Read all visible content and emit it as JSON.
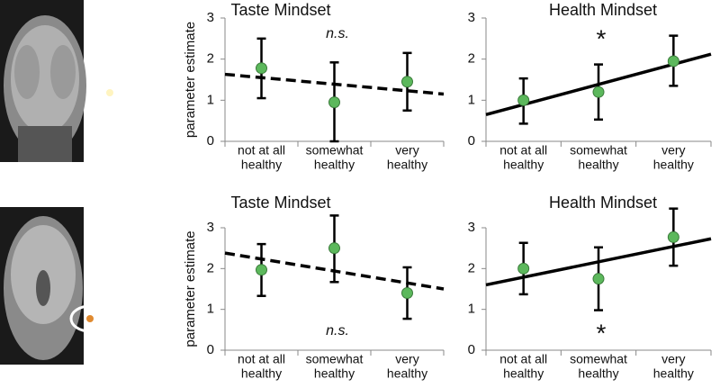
{
  "chart_data": [
    {
      "type": "errorbar",
      "title": "Taste Mindset",
      "y_label": "parameter estimate",
      "categories": [
        [
          "not at all",
          "healthy"
        ],
        [
          "somewhat",
          "healthy"
        ],
        [
          "very",
          "healthy"
        ]
      ],
      "values": [
        1.78,
        0.95,
        1.45
      ],
      "lower": [
        1.05,
        0,
        0.75
      ],
      "upper": [
        2.5,
        1.92,
        2.15
      ],
      "color": "#5cb85c",
      "ylim": [
        0,
        3
      ],
      "yticks": [
        0,
        1,
        2,
        3
      ],
      "trend_line": {
        "style": "dashed",
        "values": [
          1.63,
          1.15
        ]
      },
      "annotation": "n.s."
    },
    {
      "type": "errorbar",
      "title": "Health Mindset",
      "categories": [
        [
          "not at all",
          "healthy"
        ],
        [
          "somewhat",
          "healthy"
        ],
        [
          "very",
          "healthy"
        ]
      ],
      "values": [
        1.0,
        1.2,
        1.95
      ],
      "lower": [
        0.43,
        0.53,
        1.35
      ],
      "upper": [
        1.53,
        1.87,
        2.57
      ],
      "color": "#5cb85c",
      "ylim": [
        0,
        3
      ],
      "yticks": [
        0,
        1,
        2,
        3
      ],
      "trend_line": {
        "style": "solid",
        "values": [
          0.65,
          2.12
        ]
      },
      "annotation": "*"
    },
    {
      "type": "errorbar",
      "title": "Taste Mindset",
      "y_label": "parameter estimate",
      "categories": [
        [
          "not at all",
          "healthy"
        ],
        [
          "somewhat",
          "healthy"
        ],
        [
          "very",
          "healthy"
        ]
      ],
      "values": [
        1.97,
        2.5,
        1.4
      ],
      "lower": [
        1.33,
        1.67,
        0.77
      ],
      "upper": [
        2.6,
        3.3,
        2.03
      ],
      "color": "#5cb85c",
      "ylim": [
        0,
        3
      ],
      "yticks": [
        0,
        1,
        2,
        3
      ],
      "trend_line": {
        "style": "dashed",
        "values": [
          2.38,
          1.5
        ]
      },
      "annotation": "n.s."
    },
    {
      "type": "errorbar",
      "title": "Health Mindset",
      "categories": [
        [
          "not at all",
          "healthy"
        ],
        [
          "somewhat",
          "healthy"
        ],
        [
          "very",
          "healthy"
        ]
      ],
      "values": [
        2.0,
        1.75,
        2.77
      ],
      "lower": [
        1.37,
        0.98,
        2.07
      ],
      "upper": [
        2.63,
        2.52,
        3.47
      ],
      "color": "#5cb85c",
      "ylim": [
        0,
        3
      ],
      "yticks": [
        0,
        1,
        2,
        3
      ],
      "trend_line": {
        "style": "solid",
        "values": [
          1.6,
          2.73
        ]
      },
      "annotation": "*"
    }
  ]
}
